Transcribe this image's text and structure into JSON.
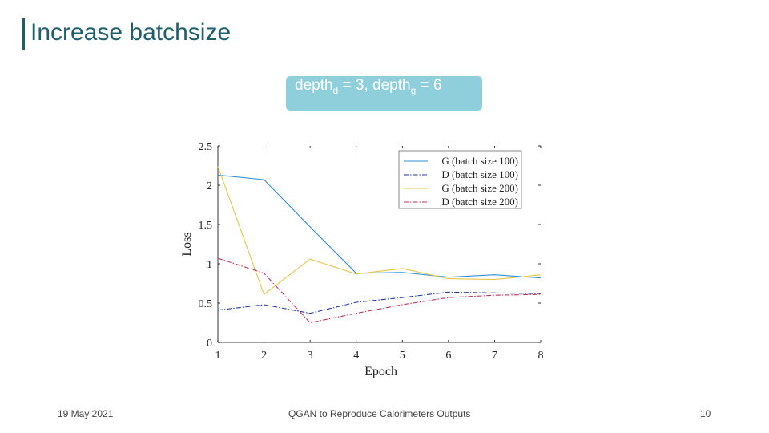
{
  "slide": {
    "title": "Increase batchsize",
    "caption": {
      "part1": "depth",
      "sub1": "d",
      "part2": " = 3, depth",
      "sub2": "g",
      "part3": " = 6"
    },
    "footer": {
      "date": "19 May 2021",
      "title": "QGAN to Reproduce Calorimeters Outputs",
      "page": "10"
    }
  },
  "colors": {
    "title": "#1f5f6b",
    "caption_bg": "#8fcfdc",
    "G100": "#2f8fd6",
    "D100": "#1f3aa8",
    "G200": "#e8c547",
    "D200": "#c2355a"
  },
  "chart_data": {
    "type": "line",
    "xlabel": "Epoch",
    "ylabel": "Loss",
    "x": [
      1,
      2,
      3,
      4,
      5,
      6,
      7,
      8
    ],
    "xlim": [
      1,
      8
    ],
    "ylim": [
      0,
      2.5
    ],
    "xticks": [
      "1",
      "2",
      "3",
      "4",
      "5",
      "6",
      "7",
      "8"
    ],
    "yticks": [
      "0",
      "0.5",
      "1",
      "1.5",
      "2",
      "2.5"
    ],
    "grid": false,
    "legend_position": "top-right",
    "series": [
      {
        "name": "G (batch size 100)",
        "style": "solid",
        "color": "#2f8fd6",
        "values": [
          2.13,
          2.07,
          1.47,
          0.88,
          0.89,
          0.83,
          0.86,
          0.82
        ]
      },
      {
        "name": "D (batch size 100)",
        "style": "dashdot",
        "color": "#1f3aa8",
        "values": [
          0.41,
          0.48,
          0.37,
          0.51,
          0.57,
          0.64,
          0.63,
          0.62
        ]
      },
      {
        "name": "G (batch size 200)",
        "style": "solid",
        "color": "#e8c547",
        "values": [
          2.24,
          0.61,
          1.06,
          0.87,
          0.94,
          0.81,
          0.8,
          0.86
        ]
      },
      {
        "name": "D (batch size 200)",
        "style": "dashdot",
        "color": "#c2355a",
        "values": [
          1.07,
          0.88,
          0.25,
          0.37,
          0.48,
          0.57,
          0.6,
          0.61
        ]
      }
    ]
  }
}
